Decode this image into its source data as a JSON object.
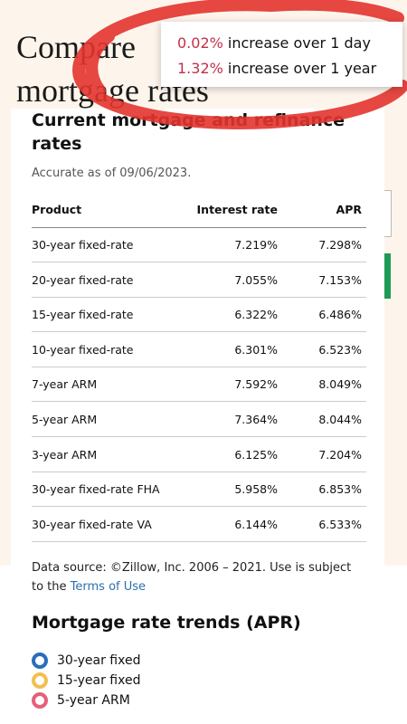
{
  "header": {
    "title": "Compare mortgage rates"
  },
  "tooltip": {
    "lines": [
      {
        "value": "0.02%",
        "text": "increase over 1 day"
      },
      {
        "value": "1.32%",
        "text": "increase over 1 year"
      }
    ]
  },
  "card": {
    "title": "Current mortgage and refinance rates",
    "accuracy": "Accurate as of 09/06/2023.",
    "table": {
      "headers": [
        "Product",
        "Interest rate",
        "APR"
      ],
      "rows": [
        [
          "30-year fixed-rate",
          "7.219%",
          "7.298%"
        ],
        [
          "20-year fixed-rate",
          "7.055%",
          "7.153%"
        ],
        [
          "15-year fixed-rate",
          "6.322%",
          "6.486%"
        ],
        [
          "10-year fixed-rate",
          "6.301%",
          "6.523%"
        ],
        [
          "7-year ARM",
          "7.592%",
          "8.049%"
        ],
        [
          "5-year ARM",
          "7.364%",
          "8.044%"
        ],
        [
          "3-year ARM",
          "6.125%",
          "7.204%"
        ],
        [
          "30-year fixed-rate FHA",
          "5.958%",
          "6.853%"
        ],
        [
          "30-year fixed-rate VA",
          "6.144%",
          "6.533%"
        ]
      ]
    },
    "source": "Data source: ©Zillow, Inc. 2006 – 2021. Use is subject to the",
    "source_link": "Terms of Use"
  },
  "trends": {
    "title": "Mortgage rate trends (APR)",
    "legend": [
      "30-year fixed",
      "15-year fixed",
      "5-year ARM"
    ]
  }
}
